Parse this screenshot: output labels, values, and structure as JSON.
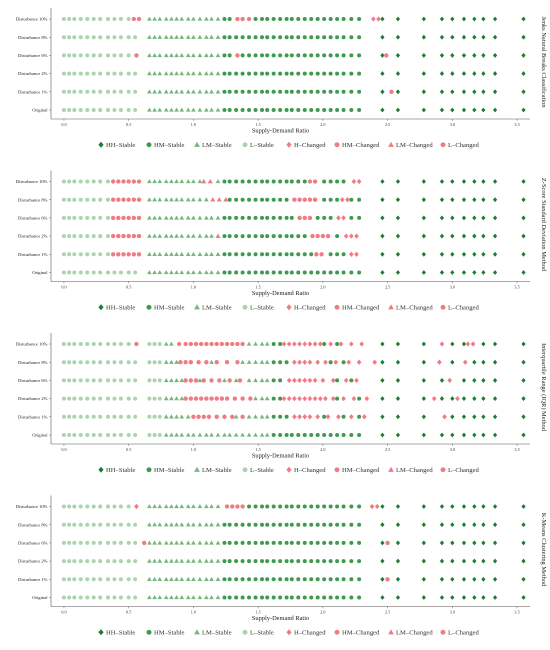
{
  "figure": {
    "x_label": "Supply-Demand Ratio",
    "colors": {
      "HH-Stable": "#1e7b32",
      "HM-Stable": "#3f9a4e",
      "LM-Stable": "#73b77a",
      "L-Stable": "#a9d4ad",
      "changed": "#ef7b84",
      "axis": "#555555"
    },
    "legend": [
      {
        "label": "HH–Stable",
        "marker": "diamond",
        "color": "#1e7b32"
      },
      {
        "label": "HM–Stable",
        "marker": "circle",
        "color": "#3f9a4e"
      },
      {
        "label": "LM–Stable",
        "marker": "triangle",
        "color": "#73b77a"
      },
      {
        "label": "L–Stable",
        "marker": "circle",
        "color": "#a9d4ad"
      },
      {
        "label": "H–Changed",
        "marker": "diamond",
        "color": "#ef7b84"
      },
      {
        "label": "HM–Changed",
        "marker": "circle",
        "color": "#ef7b84"
      },
      {
        "label": "LM–Changed",
        "marker": "triangle",
        "color": "#ef7b84"
      },
      {
        "label": "L–Changed",
        "marker": "circle",
        "color": "#ef7b84"
      }
    ]
  },
  "chart_data": [
    {
      "type": "scatter",
      "method": "Jenks Natural Breaks Classification",
      "xlabel": "Supply-Demand Ratio",
      "xlim": [
        -0.1,
        3.6
      ],
      "xticks": [
        {
          "v": 0.0,
          "label": "0.0"
        },
        {
          "v": 0.5,
          "label": "0.5"
        },
        {
          "v": 1.0,
          "label": "1.0"
        },
        {
          "v": 1.5,
          "label": "1.5"
        },
        {
          "v": 2.0,
          "label": "2.0"
        },
        {
          "v": 2.5,
          "label": "2.5"
        },
        {
          "v": 3.0,
          "label": "3.0"
        },
        {
          "v": 3.5,
          "label": "3.5"
        }
      ],
      "rows": [
        "Disturbance 10%",
        "Disturbance 8%",
        "Disturbance 6%",
        "Disturbance 2%",
        "Disturbance 1%",
        "Original"
      ],
      "changes": [
        [
          {
            "v": 0.54,
            "t": "HM"
          },
          {
            "v": 0.58,
            "t": "HM"
          },
          {
            "v": 1.34,
            "t": "HM"
          },
          {
            "v": 1.38,
            "t": "HM"
          },
          {
            "v": 1.43,
            "t": "HM"
          },
          {
            "v": 2.39,
            "t": "H"
          },
          {
            "v": 2.43,
            "t": "H"
          }
        ],
        [],
        [
          {
            "v": 0.56,
            "t": "HM"
          },
          {
            "v": 1.34,
            "t": "HM"
          },
          {
            "v": 2.49,
            "t": "HM"
          }
        ],
        [],
        [
          {
            "v": 2.53,
            "t": "HM"
          }
        ],
        []
      ]
    },
    {
      "type": "scatter",
      "method": "Z-Score Standard Deviation Method",
      "xlabel": "Supply-Demand Ratio",
      "xlim": [
        -0.1,
        3.6
      ],
      "xticks": [
        {
          "v": 0.0,
          "label": "0.0"
        },
        {
          "v": 0.5,
          "label": "0.5"
        },
        {
          "v": 1.0,
          "label": "1.0"
        },
        {
          "v": 1.5,
          "label": "1.5"
        },
        {
          "v": 2.0,
          "label": "2.0"
        },
        {
          "v": 2.5,
          "label": "2.5"
        },
        {
          "v": 3.0,
          "label": "3.0"
        },
        {
          "v": 3.5,
          "label": "3.5"
        }
      ],
      "rows": [
        "Disturbance 10%",
        "Disturbance 8%",
        "Disturbance 6%",
        "Disturbance 2%",
        "Disturbance 1%",
        "Original"
      ],
      "changes": [
        [
          {
            "v": 0.38,
            "t": "HM"
          },
          {
            "v": 0.42,
            "t": "HM"
          },
          {
            "v": 0.46,
            "t": "HM"
          },
          {
            "v": 0.5,
            "t": "HM"
          },
          {
            "v": 0.54,
            "t": "HM"
          },
          {
            "v": 0.58,
            "t": "HM"
          },
          {
            "v": 1.08,
            "t": "LM"
          },
          {
            "v": 1.13,
            "t": "LM"
          },
          {
            "v": 1.9,
            "t": "HM"
          },
          {
            "v": 1.94,
            "t": "HM"
          },
          {
            "v": 2.24,
            "t": "H"
          },
          {
            "v": 2.28,
            "t": "H"
          }
        ],
        [
          {
            "v": 0.38,
            "t": "HM"
          },
          {
            "v": 0.42,
            "t": "HM"
          },
          {
            "v": 0.46,
            "t": "HM"
          },
          {
            "v": 0.5,
            "t": "HM"
          },
          {
            "v": 0.54,
            "t": "HM"
          },
          {
            "v": 0.58,
            "t": "HM"
          },
          {
            "v": 1.15,
            "t": "LM"
          },
          {
            "v": 1.2,
            "t": "LM"
          },
          {
            "v": 1.25,
            "t": "LM"
          },
          {
            "v": 1.78,
            "t": "HM"
          },
          {
            "v": 1.82,
            "t": "HM"
          },
          {
            "v": 1.86,
            "t": "HM"
          },
          {
            "v": 1.9,
            "t": "HM"
          },
          {
            "v": 1.94,
            "t": "HM"
          },
          {
            "v": 2.15,
            "t": "H"
          },
          {
            "v": 2.19,
            "t": "H"
          }
        ],
        [
          {
            "v": 0.38,
            "t": "HM"
          },
          {
            "v": 0.42,
            "t": "HM"
          },
          {
            "v": 0.46,
            "t": "HM"
          },
          {
            "v": 0.5,
            "t": "HM"
          },
          {
            "v": 0.54,
            "t": "HM"
          },
          {
            "v": 0.58,
            "t": "HM"
          },
          {
            "v": 1.82,
            "t": "HM"
          },
          {
            "v": 1.86,
            "t": "HM"
          },
          {
            "v": 1.9,
            "t": "HM"
          },
          {
            "v": 2.12,
            "t": "H"
          },
          {
            "v": 2.16,
            "t": "H"
          }
        ],
        [
          {
            "v": 0.38,
            "t": "HM"
          },
          {
            "v": 0.42,
            "t": "HM"
          },
          {
            "v": 0.46,
            "t": "HM"
          },
          {
            "v": 0.5,
            "t": "HM"
          },
          {
            "v": 0.54,
            "t": "HM"
          },
          {
            "v": 0.58,
            "t": "HM"
          },
          {
            "v": 1.19,
            "t": "LM"
          },
          {
            "v": 1.92,
            "t": "HM"
          },
          {
            "v": 1.96,
            "t": "HM"
          },
          {
            "v": 2.0,
            "t": "HM"
          },
          {
            "v": 2.04,
            "t": "HM"
          },
          {
            "v": 2.18,
            "t": "H"
          },
          {
            "v": 2.22,
            "t": "H"
          },
          {
            "v": 2.26,
            "t": "H"
          }
        ],
        [
          {
            "v": 0.38,
            "t": "HM"
          },
          {
            "v": 0.42,
            "t": "HM"
          },
          {
            "v": 0.46,
            "t": "HM"
          },
          {
            "v": 0.5,
            "t": "HM"
          },
          {
            "v": 0.54,
            "t": "HM"
          },
          {
            "v": 0.58,
            "t": "HM"
          },
          {
            "v": 1.95,
            "t": "HM"
          },
          {
            "v": 1.99,
            "t": "HM"
          },
          {
            "v": 2.22,
            "t": "H"
          },
          {
            "v": 2.26,
            "t": "H"
          }
        ],
        []
      ]
    },
    {
      "type": "scatter",
      "method": "Interquartile Range (IQR) Method",
      "xlabel": "Supply-Demand Ratio",
      "xlim": [
        -0.1,
        3.6
      ],
      "xticks": [
        {
          "v": 0.0,
          "label": "0.0"
        },
        {
          "v": 0.5,
          "label": "0.5"
        },
        {
          "v": 1.0,
          "label": "1.0"
        },
        {
          "v": 1.5,
          "label": "1.5"
        },
        {
          "v": 2.0,
          "label": "2.0"
        },
        {
          "v": 2.5,
          "label": "2.5"
        },
        {
          "v": 3.0,
          "label": "3.0"
        },
        {
          "v": 3.5,
          "label": "3.5"
        }
      ],
      "rows": [
        "Disturbance 10%",
        "Disturbance 8%",
        "Disturbance 6%",
        "Disturbance 2%",
        "Disturbance 1%",
        "Original"
      ],
      "changes": [
        [
          {
            "v": 0.56,
            "t": "HM"
          },
          {
            "v": 0.89,
            "t": "HM"
          },
          {
            "v": 0.94,
            "t": "HM"
          },
          {
            "v": 0.98,
            "t": "HM"
          },
          {
            "v": 1.02,
            "t": "HM"
          },
          {
            "v": 1.06,
            "t": "HM"
          },
          {
            "v": 1.1,
            "t": "HM"
          },
          {
            "v": 1.14,
            "t": "HM"
          },
          {
            "v": 1.18,
            "t": "HM"
          },
          {
            "v": 1.22,
            "t": "HM"
          },
          {
            "v": 1.26,
            "t": "HM"
          },
          {
            "v": 1.3,
            "t": "HM"
          },
          {
            "v": 1.34,
            "t": "HM"
          },
          {
            "v": 1.38,
            "t": "HM"
          },
          {
            "v": 1.7,
            "t": "H"
          },
          {
            "v": 1.74,
            "t": "H"
          },
          {
            "v": 1.78,
            "t": "H"
          },
          {
            "v": 1.82,
            "t": "H"
          },
          {
            "v": 1.86,
            "t": "H"
          },
          {
            "v": 1.9,
            "t": "H"
          },
          {
            "v": 1.94,
            "t": "H"
          },
          {
            "v": 1.98,
            "t": "H"
          },
          {
            "v": 2.06,
            "t": "H"
          },
          {
            "v": 2.14,
            "t": "H"
          },
          {
            "v": 2.22,
            "t": "H"
          },
          {
            "v": 2.3,
            "t": "H"
          },
          {
            "v": 2.92,
            "t": "H"
          },
          {
            "v": 3.12,
            "t": "H"
          },
          {
            "v": 3.16,
            "t": "H"
          }
        ],
        [
          {
            "v": 0.9,
            "t": "HM"
          },
          {
            "v": 0.94,
            "t": "HM"
          },
          {
            "v": 0.98,
            "t": "HM"
          },
          {
            "v": 1.04,
            "t": "HM"
          },
          {
            "v": 1.1,
            "t": "HM"
          },
          {
            "v": 1.18,
            "t": "HM"
          },
          {
            "v": 1.26,
            "t": "HM"
          },
          {
            "v": 1.34,
            "t": "HM"
          },
          {
            "v": 1.78,
            "t": "H"
          },
          {
            "v": 1.82,
            "t": "H"
          },
          {
            "v": 1.86,
            "t": "H"
          },
          {
            "v": 1.9,
            "t": "H"
          },
          {
            "v": 1.96,
            "t": "H"
          },
          {
            "v": 2.02,
            "t": "H"
          },
          {
            "v": 2.1,
            "t": "H"
          },
          {
            "v": 2.2,
            "t": "H"
          },
          {
            "v": 2.28,
            "t": "H"
          },
          {
            "v": 2.4,
            "t": "H"
          },
          {
            "v": 2.9,
            "t": "H"
          },
          {
            "v": 3.1,
            "t": "H"
          }
        ],
        [
          {
            "v": 0.94,
            "t": "HM"
          },
          {
            "v": 0.98,
            "t": "HM"
          },
          {
            "v": 1.02,
            "t": "HM"
          },
          {
            "v": 1.08,
            "t": "HM"
          },
          {
            "v": 1.14,
            "t": "HM"
          },
          {
            "v": 1.2,
            "t": "HM"
          },
          {
            "v": 1.28,
            "t": "HM"
          },
          {
            "v": 1.36,
            "t": "HM"
          },
          {
            "v": 1.74,
            "t": "H"
          },
          {
            "v": 1.78,
            "t": "H"
          },
          {
            "v": 1.82,
            "t": "H"
          },
          {
            "v": 1.86,
            "t": "H"
          },
          {
            "v": 1.9,
            "t": "H"
          },
          {
            "v": 1.94,
            "t": "H"
          },
          {
            "v": 2.0,
            "t": "H"
          },
          {
            "v": 2.08,
            "t": "H"
          },
          {
            "v": 2.18,
            "t": "H"
          },
          {
            "v": 2.26,
            "t": "H"
          },
          {
            "v": 2.98,
            "t": "H"
          }
        ],
        [
          {
            "v": 0.94,
            "t": "HM"
          },
          {
            "v": 0.98,
            "t": "HM"
          },
          {
            "v": 1.02,
            "t": "HM"
          },
          {
            "v": 1.06,
            "t": "HM"
          },
          {
            "v": 1.1,
            "t": "HM"
          },
          {
            "v": 1.14,
            "t": "HM"
          },
          {
            "v": 1.18,
            "t": "HM"
          },
          {
            "v": 1.22,
            "t": "HM"
          },
          {
            "v": 1.26,
            "t": "HM"
          },
          {
            "v": 1.32,
            "t": "HM"
          },
          {
            "v": 1.38,
            "t": "HM"
          },
          {
            "v": 1.44,
            "t": "HM"
          },
          {
            "v": 1.7,
            "t": "H"
          },
          {
            "v": 1.74,
            "t": "H"
          },
          {
            "v": 1.78,
            "t": "H"
          },
          {
            "v": 1.82,
            "t": "H"
          },
          {
            "v": 1.86,
            "t": "H"
          },
          {
            "v": 1.9,
            "t": "H"
          },
          {
            "v": 1.94,
            "t": "H"
          },
          {
            "v": 1.98,
            "t": "H"
          },
          {
            "v": 2.02,
            "t": "H"
          },
          {
            "v": 2.08,
            "t": "H"
          },
          {
            "v": 2.16,
            "t": "H"
          },
          {
            "v": 2.24,
            "t": "H"
          },
          {
            "v": 2.34,
            "t": "H"
          },
          {
            "v": 2.86,
            "t": "H"
          },
          {
            "v": 3.04,
            "t": "H"
          }
        ],
        [
          {
            "v": 1.0,
            "t": "HM"
          },
          {
            "v": 1.04,
            "t": "HM"
          },
          {
            "v": 1.08,
            "t": "HM"
          },
          {
            "v": 1.12,
            "t": "HM"
          },
          {
            "v": 1.18,
            "t": "HM"
          },
          {
            "v": 1.24,
            "t": "HM"
          },
          {
            "v": 1.3,
            "t": "HM"
          },
          {
            "v": 1.38,
            "t": "HM"
          },
          {
            "v": 1.78,
            "t": "H"
          },
          {
            "v": 1.82,
            "t": "H"
          },
          {
            "v": 1.86,
            "t": "H"
          },
          {
            "v": 1.9,
            "t": "H"
          },
          {
            "v": 1.96,
            "t": "H"
          },
          {
            "v": 2.04,
            "t": "H"
          },
          {
            "v": 2.12,
            "t": "H"
          },
          {
            "v": 2.22,
            "t": "H"
          },
          {
            "v": 2.32,
            "t": "H"
          },
          {
            "v": 2.94,
            "t": "H"
          }
        ],
        []
      ]
    },
    {
      "type": "scatter",
      "method": "K-Means Clustering Method",
      "xlabel": "Supply-Demand Ratio",
      "xlim": [
        -0.1,
        3.6
      ],
      "xticks": [
        {
          "v": 0.0,
          "label": "0.0"
        },
        {
          "v": 0.5,
          "label": "0.5"
        },
        {
          "v": 1.0,
          "label": "1.0"
        },
        {
          "v": 1.5,
          "label": "1.5"
        },
        {
          "v": 2.0,
          "label": "2.0"
        },
        {
          "v": 2.5,
          "label": "2.5"
        },
        {
          "v": 3.0,
          "label": "3.0"
        },
        {
          "v": 3.5,
          "label": "3.5"
        }
      ],
      "rows": [
        "Disturbance 10%",
        "Disturbance 8%",
        "Disturbance 6%",
        "Disturbance 2%",
        "Disturbance 1%",
        "Original"
      ],
      "changes": [
        [
          {
            "v": 0.56,
            "t": "H"
          },
          {
            "v": 1.26,
            "t": "HM"
          },
          {
            "v": 1.3,
            "t": "HM"
          },
          {
            "v": 1.34,
            "t": "HM"
          },
          {
            "v": 1.38,
            "t": "HM"
          },
          {
            "v": 2.38,
            "t": "H"
          },
          {
            "v": 2.42,
            "t": "H"
          }
        ],
        [],
        [
          {
            "v": 0.62,
            "t": "HM"
          },
          {
            "v": 2.5,
            "t": "HM"
          }
        ],
        [],
        [
          {
            "v": 2.5,
            "t": "HM"
          }
        ],
        []
      ]
    }
  ]
}
